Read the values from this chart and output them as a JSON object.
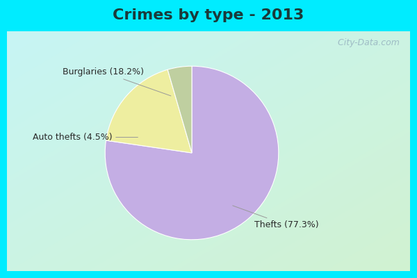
{
  "title": "Crimes by type - 2013",
  "slices": [
    {
      "label": "Thefts (77.3%)",
      "value": 77.3,
      "color": "#C4AEE4"
    },
    {
      "label": "Burglaries (18.2%)",
      "value": 18.2,
      "color": "#EEEEA0"
    },
    {
      "label": "Auto thefts (4.5%)",
      "value": 4.5,
      "color": "#BFCFA0"
    }
  ],
  "border_color": "#00ECFF",
  "border_thickness": 10,
  "bg_topleft": [
    0.78,
    0.96,
    0.96
  ],
  "bg_bottomright": [
    0.82,
    0.95,
    0.82
  ],
  "title_fontsize": 16,
  "label_fontsize": 9,
  "startangle": 90,
  "watermark": " City-Data.com"
}
